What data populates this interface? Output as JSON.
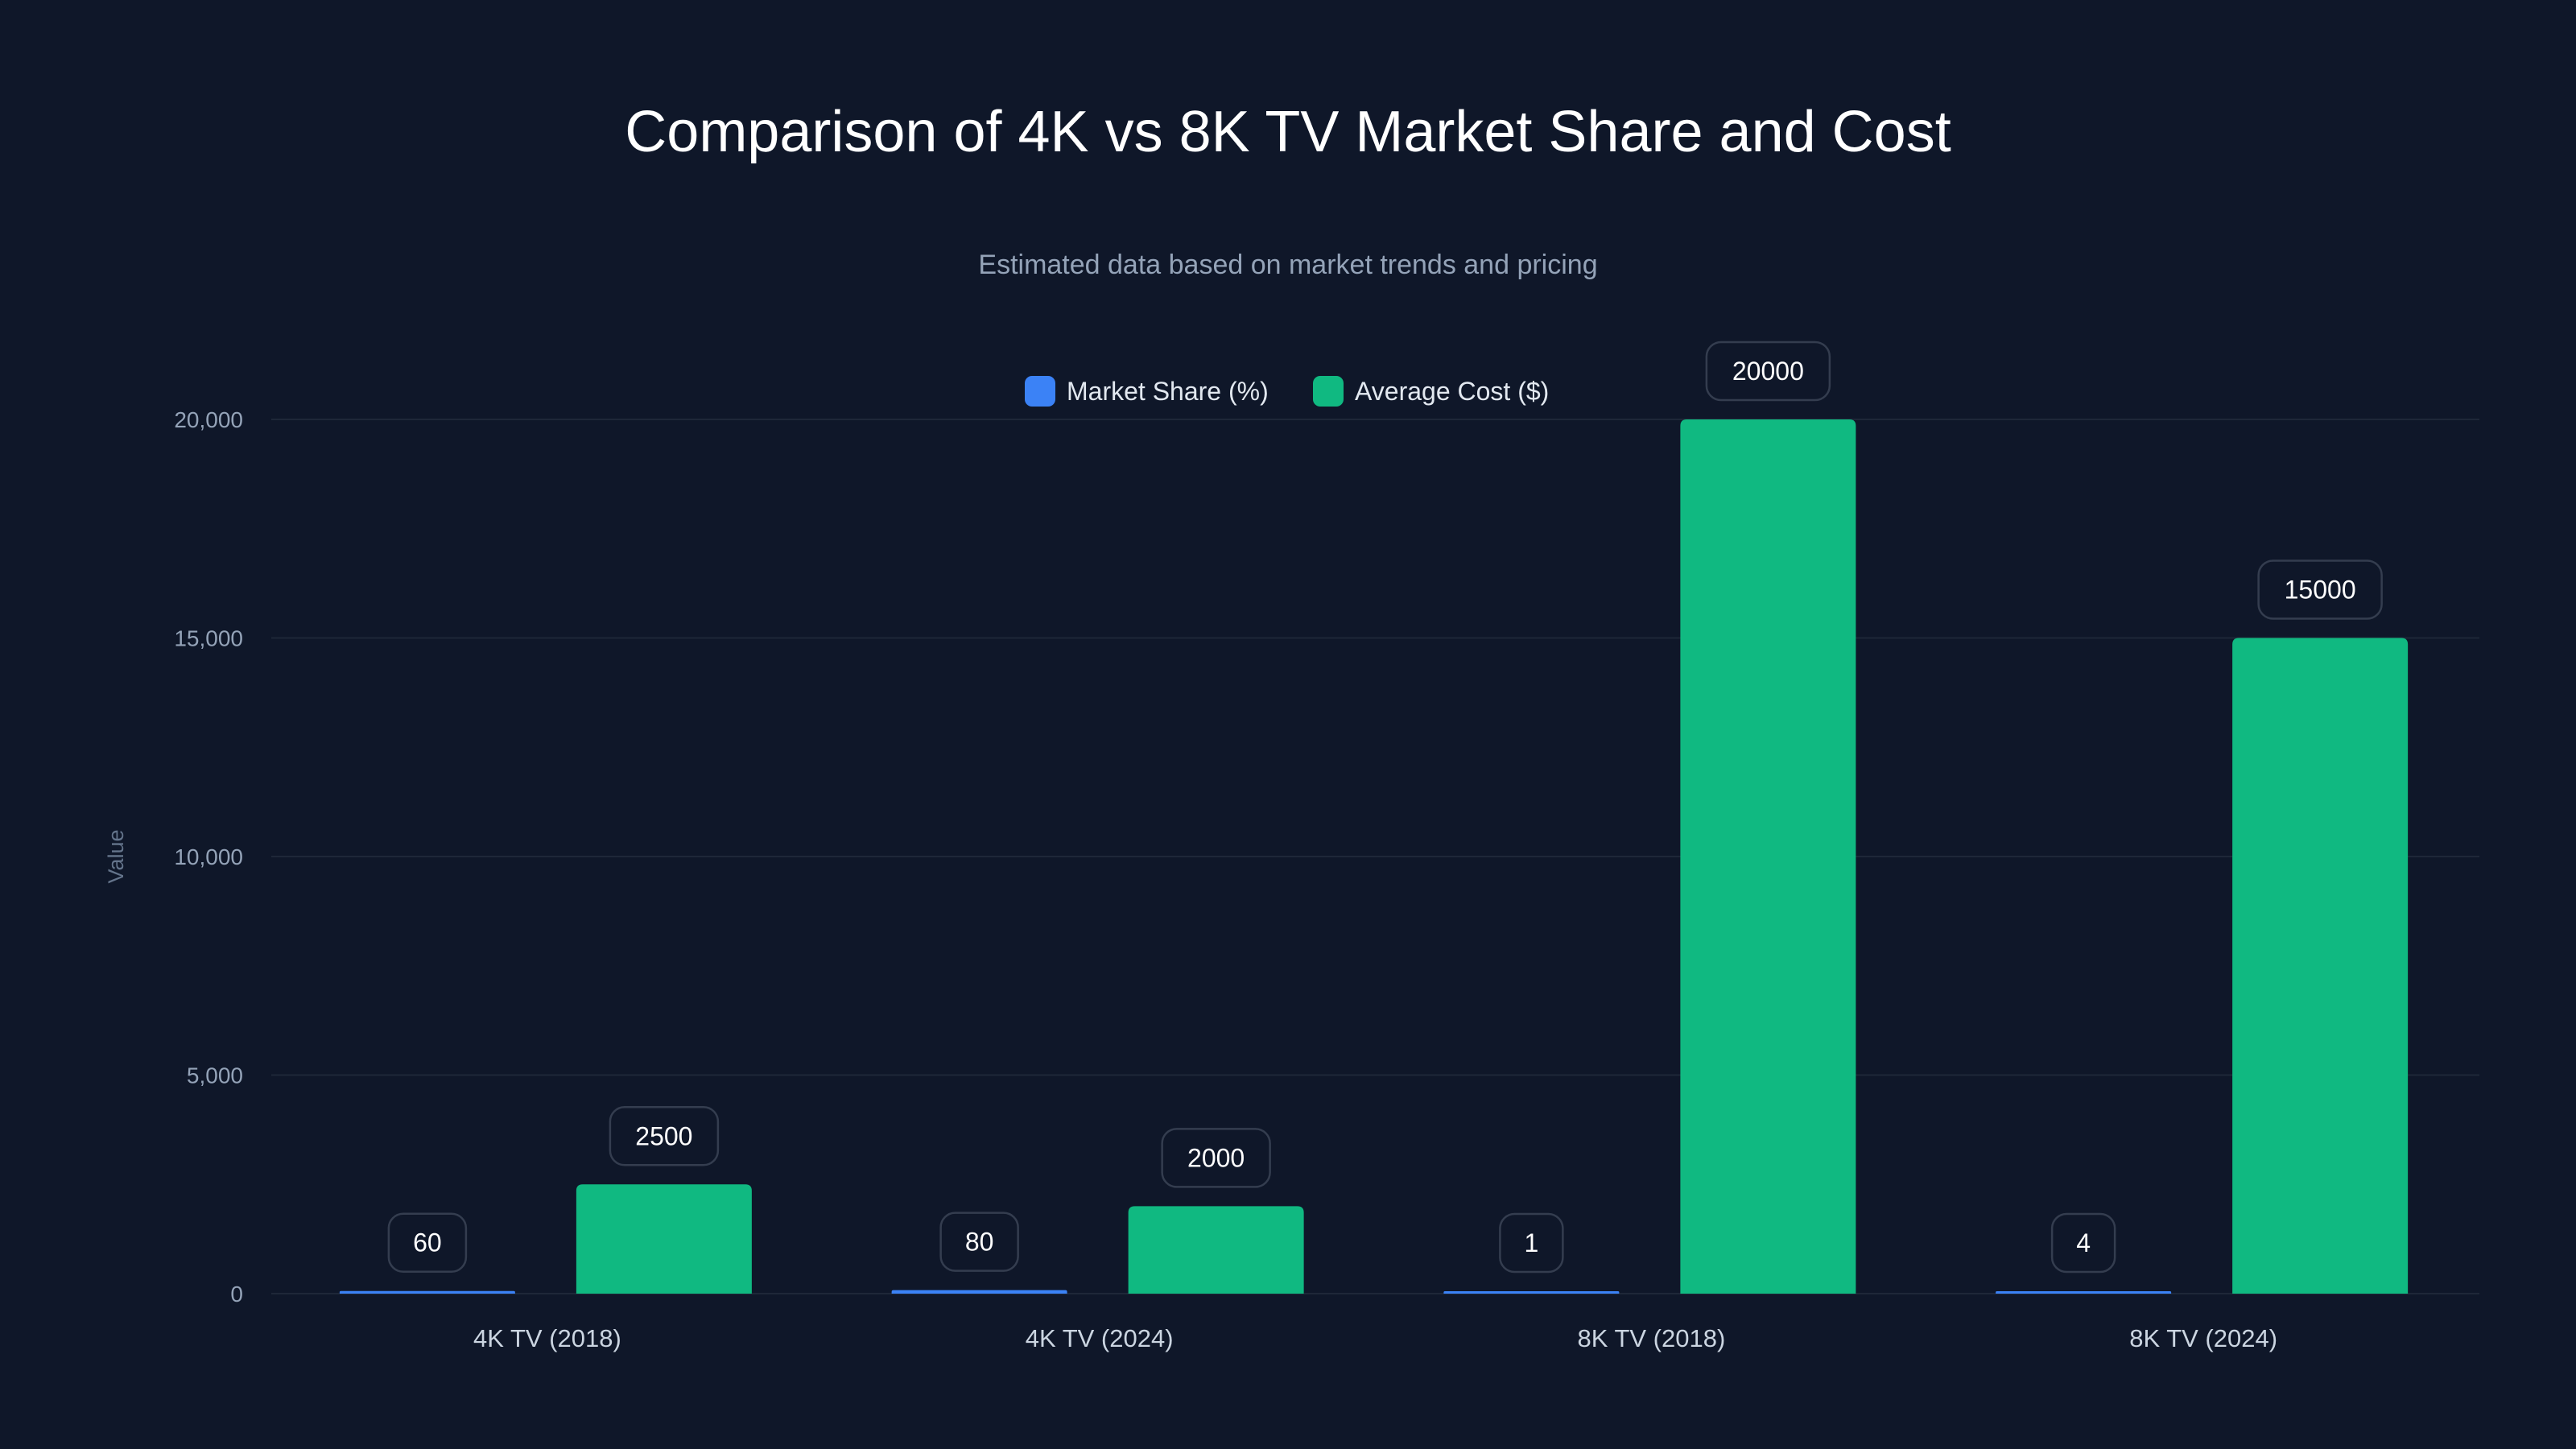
{
  "chart_data": {
    "type": "bar",
    "title": "Comparison of 4K vs 8K TV Market Share and Cost",
    "subtitle": "Estimated data based on market trends and pricing",
    "xlabel": "",
    "ylabel": "Value",
    "ylim": [
      0,
      20000
    ],
    "yticks": [
      0,
      5000,
      10000,
      15000,
      20000
    ],
    "ytick_labels": [
      "0",
      "5,000",
      "10,000",
      "15,000",
      "20,000"
    ],
    "grid": true,
    "legend_position": "top-center",
    "categories": [
      "4K TV (2018)",
      "4K TV (2024)",
      "8K TV (2018)",
      "8K TV (2024)"
    ],
    "series": [
      {
        "name": "Market Share (%)",
        "color": "#3b82f6",
        "values": [
          60,
          80,
          1,
          4
        ]
      },
      {
        "name": "Average Cost ($)",
        "color": "#10b981",
        "values": [
          2500,
          2000,
          20000,
          15000
        ]
      }
    ]
  }
}
